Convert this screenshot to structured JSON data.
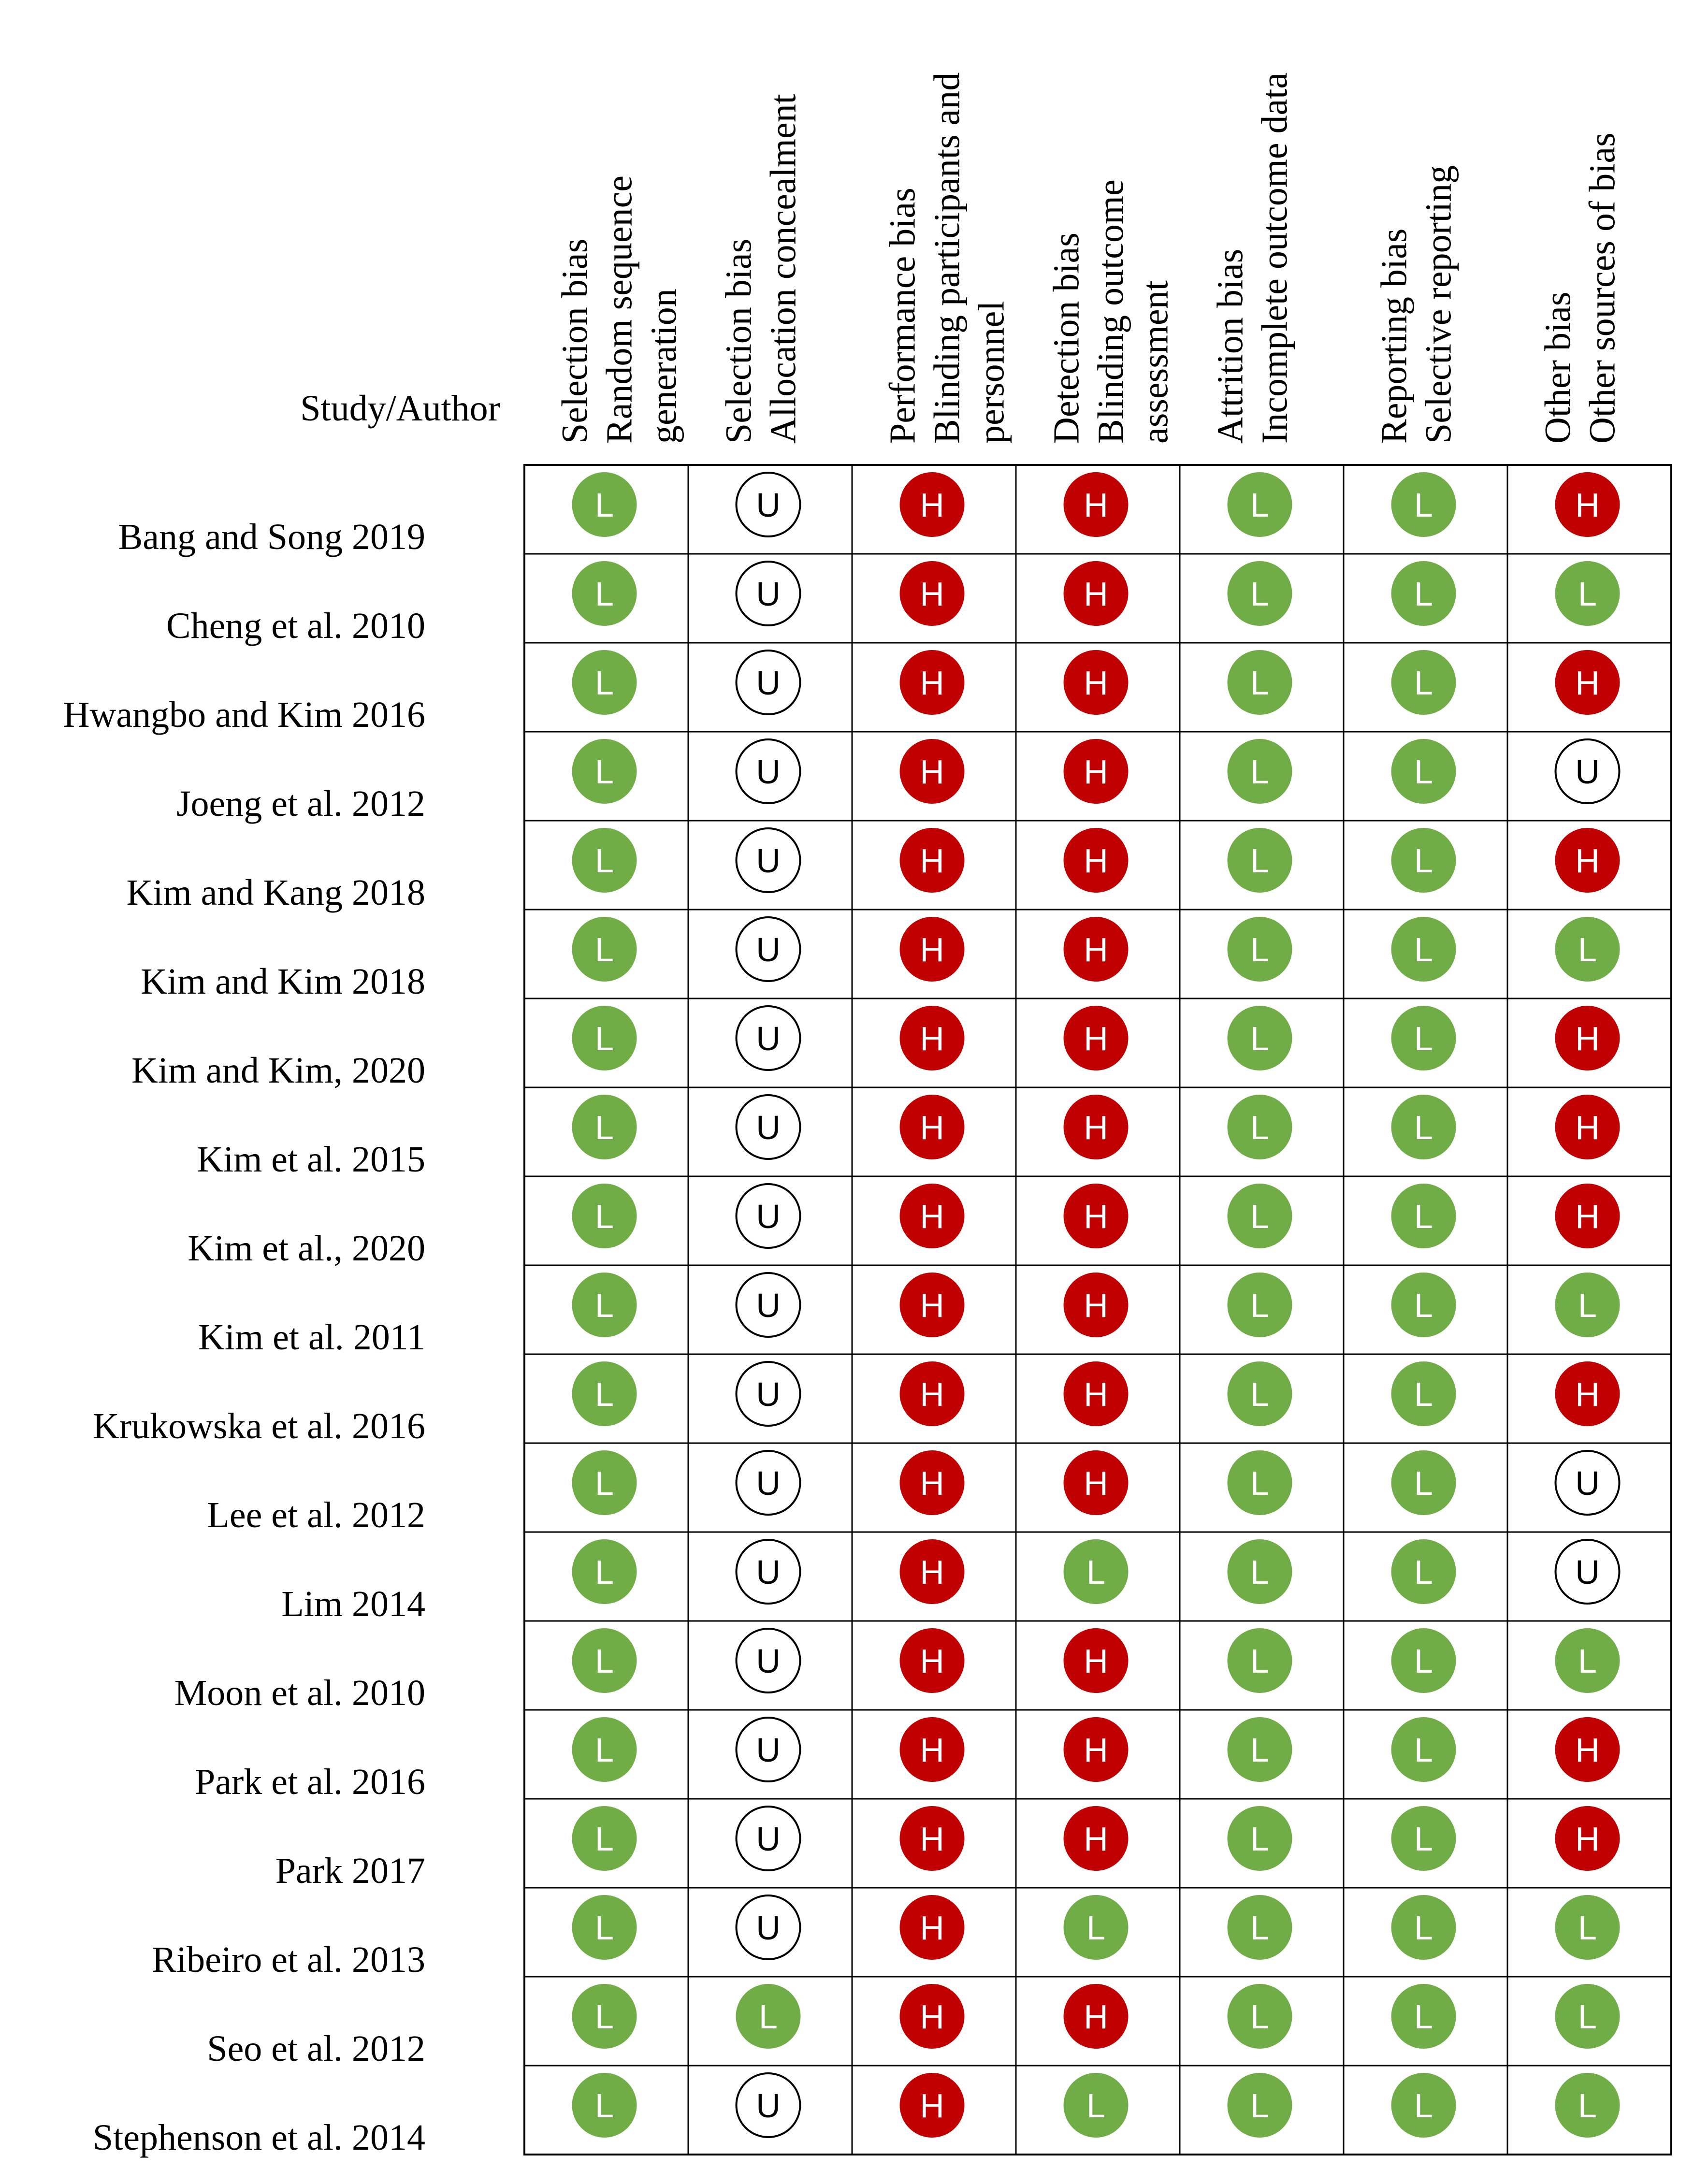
{
  "chart_data": {
    "type": "table",
    "row_header": "Study/Author",
    "columns": [
      {
        "lines": [
          "Selection bias",
          "Random sequence",
          "generation"
        ]
      },
      {
        "lines": [
          "Selection bias",
          "Allocation concealment"
        ]
      },
      {
        "lines": [
          "Performance bias",
          "Blinding participants and",
          "personnel"
        ]
      },
      {
        "lines": [
          "Detection bias",
          "Blinding outcome",
          "assessment"
        ]
      },
      {
        "lines": [
          "Attrition bias",
          "Incomplete outcome data"
        ]
      },
      {
        "lines": [
          "Reporting bias",
          "Selective reporting"
        ]
      },
      {
        "lines": [
          "Other bias",
          "Other sources of bias"
        ]
      }
    ],
    "rows": [
      {
        "study": "Bang and Song 2019",
        "ratings": [
          "L",
          "U",
          "H",
          "H",
          "L",
          "L",
          "H"
        ]
      },
      {
        "study": "Cheng et al. 2010",
        "ratings": [
          "L",
          "U",
          "H",
          "H",
          "L",
          "L",
          "L"
        ]
      },
      {
        "study": "Hwangbo and Kim 2016",
        "ratings": [
          "L",
          "U",
          "H",
          "H",
          "L",
          "L",
          "H"
        ]
      },
      {
        "study": "Joeng et al. 2012",
        "ratings": [
          "L",
          "U",
          "H",
          "H",
          "L",
          "L",
          "U"
        ]
      },
      {
        "study": "Kim and Kang 2018",
        "ratings": [
          "L",
          "U",
          "H",
          "H",
          "L",
          "L",
          "H"
        ]
      },
      {
        "study": "Kim and Kim 2018",
        "ratings": [
          "L",
          "U",
          "H",
          "H",
          "L",
          "L",
          "L"
        ]
      },
      {
        "study": "Kim and Kim, 2020",
        "ratings": [
          "L",
          "U",
          "H",
          "H",
          "L",
          "L",
          "H"
        ]
      },
      {
        "study": "Kim et al. 2015",
        "ratings": [
          "L",
          "U",
          "H",
          "H",
          "L",
          "L",
          "H"
        ]
      },
      {
        "study": "Kim et al., 2020",
        "ratings": [
          "L",
          "U",
          "H",
          "H",
          "L",
          "L",
          "H"
        ]
      },
      {
        "study": "Kim et al. 2011",
        "ratings": [
          "L",
          "U",
          "H",
          "H",
          "L",
          "L",
          "L"
        ]
      },
      {
        "study": "Krukowska et al. 2016",
        "ratings": [
          "L",
          "U",
          "H",
          "H",
          "L",
          "L",
          "H"
        ]
      },
      {
        "study": "Lee et al. 2012",
        "ratings": [
          "L",
          "U",
          "H",
          "H",
          "L",
          "L",
          "U"
        ]
      },
      {
        "study": "Lim 2014",
        "ratings": [
          "L",
          "U",
          "H",
          "L",
          "L",
          "L",
          "U"
        ]
      },
      {
        "study": "Moon et al. 2010",
        "ratings": [
          "L",
          "U",
          "H",
          "H",
          "L",
          "L",
          "L"
        ]
      },
      {
        "study": "Park et al. 2016",
        "ratings": [
          "L",
          "U",
          "H",
          "H",
          "L",
          "L",
          "H"
        ]
      },
      {
        "study": "Park 2017",
        "ratings": [
          "L",
          "U",
          "H",
          "H",
          "L",
          "L",
          "H"
        ]
      },
      {
        "study": "Ribeiro et al. 2013",
        "ratings": [
          "L",
          "U",
          "H",
          "L",
          "L",
          "L",
          "L"
        ]
      },
      {
        "study": "Seo et al. 2012",
        "ratings": [
          "L",
          "L",
          "H",
          "H",
          "L",
          "L",
          "L"
        ]
      },
      {
        "study": "Stephenson et al. 2014",
        "ratings": [
          "L",
          "U",
          "H",
          "L",
          "L",
          "L",
          "L"
        ]
      }
    ],
    "rating_styles": {
      "L": {
        "fill": "#70ad47",
        "text": "#ffffff",
        "border": "#70ad47"
      },
      "H": {
        "fill": "#c00000",
        "text": "#ffffff",
        "border": "#c00000"
      },
      "U": {
        "fill": "#ffffff",
        "text": "#000000",
        "border": "#000000"
      }
    }
  }
}
